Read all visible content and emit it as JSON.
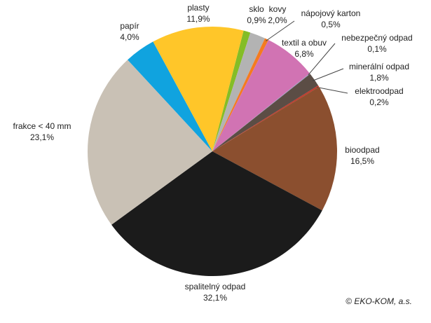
{
  "chart_data": {
    "type": "pie",
    "categories": [
      "sklo",
      "kovy",
      "nápojový karton",
      "textil a obuv",
      "nebezpečný odpad",
      "minerální odpad",
      "elektroodpad",
      "bioodpad",
      "spalitelný odpad",
      "frakce < 40 mm",
      "papír",
      "plasty"
    ],
    "values": [
      0.9,
      2.0,
      0.5,
      6.8,
      0.1,
      1.8,
      0.2,
      16.5,
      32.1,
      23.1,
      4.0,
      11.9
    ],
    "value_labels": [
      "0,9%",
      "2,0%",
      "0,5%",
      "6,8%",
      "0,1%",
      "1,8%",
      "0,2%",
      "16,5%",
      "32,1%",
      "23,1%",
      "4,0%",
      "11,9%"
    ],
    "colors": [
      "#84bd26",
      "#b3b3b3",
      "#f47b20",
      "#d173b3",
      "#9b9bc0",
      "#5b4d45",
      "#c0392b",
      "#8b4f2f",
      "#1b1b1b",
      "#c9c1b5",
      "#10a3df",
      "#ffc629"
    ],
    "source": "© EKO-KOM, a.s."
  }
}
